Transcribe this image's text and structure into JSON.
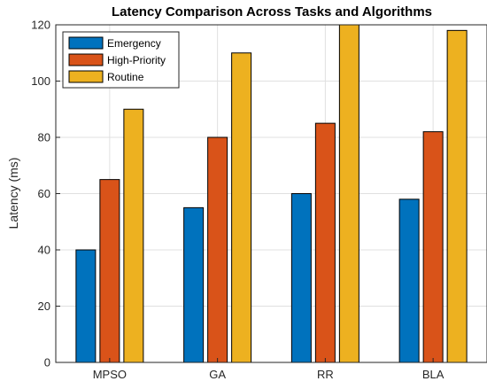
{
  "chart_data": {
    "type": "bar",
    "title": "Latency Comparison Across Tasks and Algorithms",
    "xlabel": "",
    "ylabel": "Latency (ms)",
    "categories": [
      "MPSO",
      "GA",
      "RR",
      "BLA"
    ],
    "series": [
      {
        "name": "Emergency",
        "color": "#0072BD",
        "values": [
          40,
          55,
          60,
          58
        ]
      },
      {
        "name": "High-Priority",
        "color": "#D95319",
        "values": [
          65,
          80,
          85,
          82
        ]
      },
      {
        "name": "Routine",
        "color": "#EDB120",
        "values": [
          90,
          110,
          120,
          118
        ]
      }
    ],
    "ylim": [
      0,
      120
    ],
    "yticks": [
      0,
      20,
      40,
      60,
      80,
      100,
      120
    ],
    "grid": true,
    "legend_position": "top-left"
  }
}
